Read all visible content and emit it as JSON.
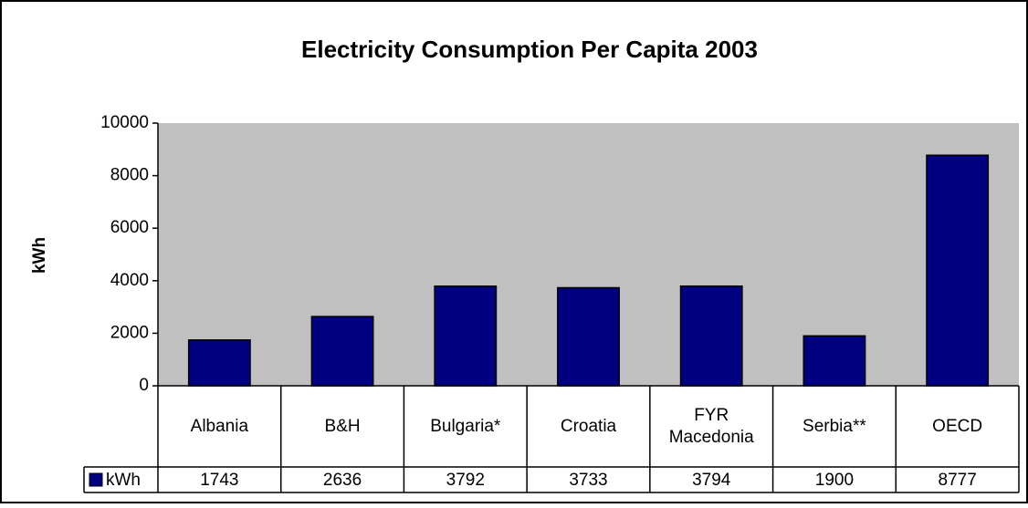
{
  "chart_data": {
    "type": "bar",
    "title": "Electricity Consumption Per Capita 2003",
    "y_label": "kWh",
    "categories": [
      "Albania",
      "B&H",
      "Bulgaria*",
      "Croatia",
      "FYR Macedonia",
      "Serbia**",
      "OECD"
    ],
    "series": [
      {
        "name": "kWh",
        "color": "#000080",
        "values": [
          1743,
          2636,
          3792,
          3733,
          3794,
          1900,
          8777
        ]
      }
    ],
    "ylim": [
      0,
      10000
    ],
    "yticks": [
      0,
      2000,
      4000,
      6000,
      8000,
      10000
    ],
    "plot_background": "#c0c0c0",
    "data_table": true
  }
}
